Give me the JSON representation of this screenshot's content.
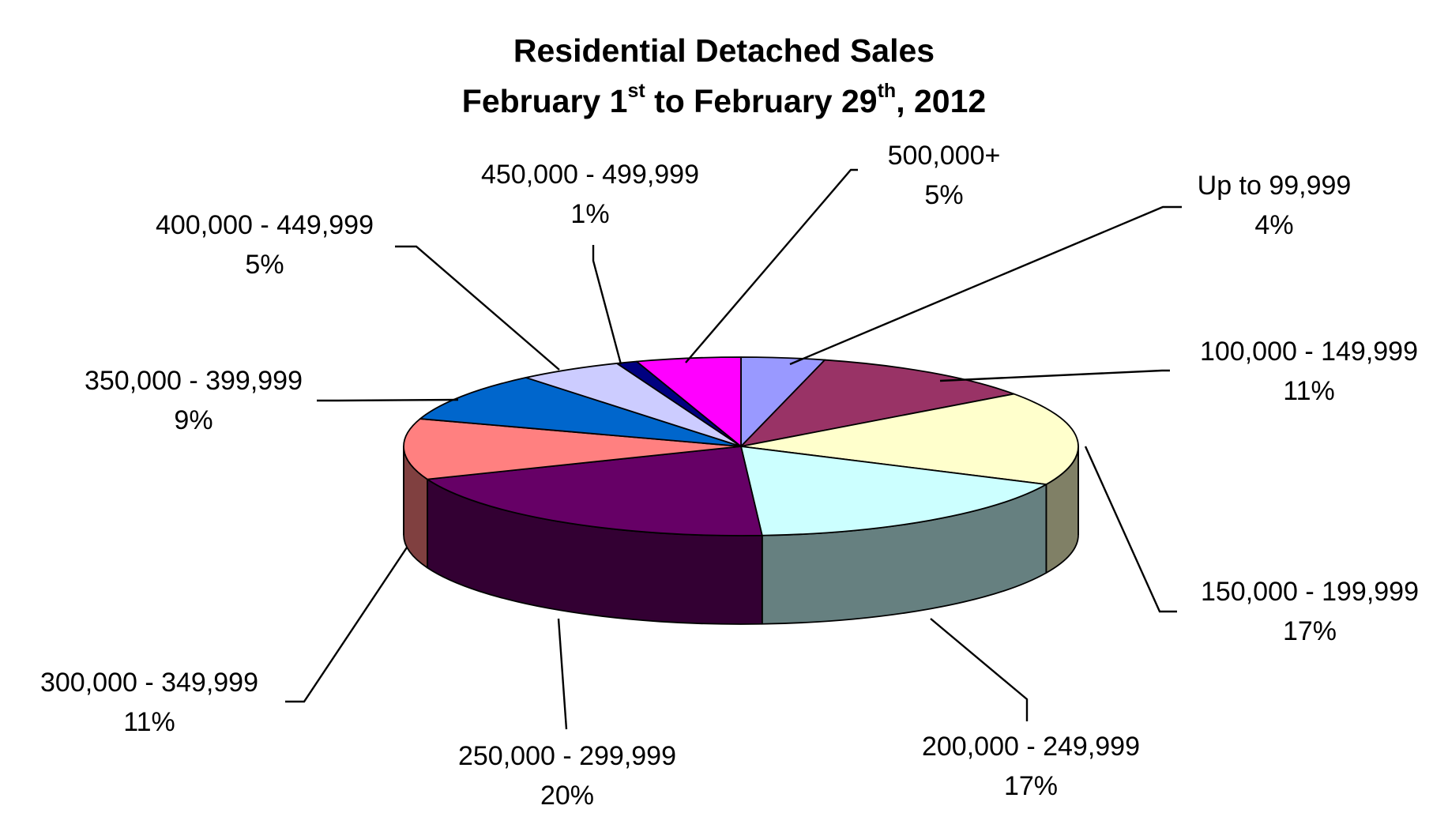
{
  "chart_data": {
    "type": "pie",
    "title": {
      "line1": "Residential Detached Sales",
      "line2_parts": [
        "February 1",
        "st",
        " to February 29",
        "th",
        ", 2012"
      ]
    },
    "slices": [
      {
        "label": "Up to 99,999",
        "value": 4,
        "value_label": "4%",
        "color": "#9999FF",
        "side_color": "#5c5c99"
      },
      {
        "label": "100,000 - 149,999",
        "value": 11,
        "value_label": "11%",
        "color": "#993366",
        "side_color": "#5c1f3d"
      },
      {
        "label": "150,000 - 199,999",
        "value": 17,
        "value_label": "17%",
        "color": "#FFFFCC",
        "side_color": "#808066"
      },
      {
        "label": "200,000 - 249,999",
        "value": 17,
        "value_label": "17%",
        "color": "#CCFFFF",
        "side_color": "#668080"
      },
      {
        "label": "250,000 - 299,999",
        "value": 20,
        "value_label": "20%",
        "color": "#660066",
        "side_color": "#330033"
      },
      {
        "label": "300,000 - 349,999",
        "value": 11,
        "value_label": "11%",
        "color": "#FF8080",
        "side_color": "#804040"
      },
      {
        "label": "350,000 - 399,999",
        "value": 9,
        "value_label": "9%",
        "color": "#0066CC",
        "side_color": "#003366"
      },
      {
        "label": "400,000 - 449,999",
        "value": 5,
        "value_label": "5%",
        "color": "#CCCCFF",
        "side_color": "#666680"
      },
      {
        "label": "450,000 - 499,999",
        "value": 1,
        "value_label": "1%",
        "color": "#000080",
        "side_color": "#000040"
      },
      {
        "label": "500,000+",
        "value": 5,
        "value_label": "5%",
        "color": "#FF00FF",
        "side_color": "#800080"
      }
    ],
    "legend": "none",
    "data_labels": "outside with leader lines"
  }
}
